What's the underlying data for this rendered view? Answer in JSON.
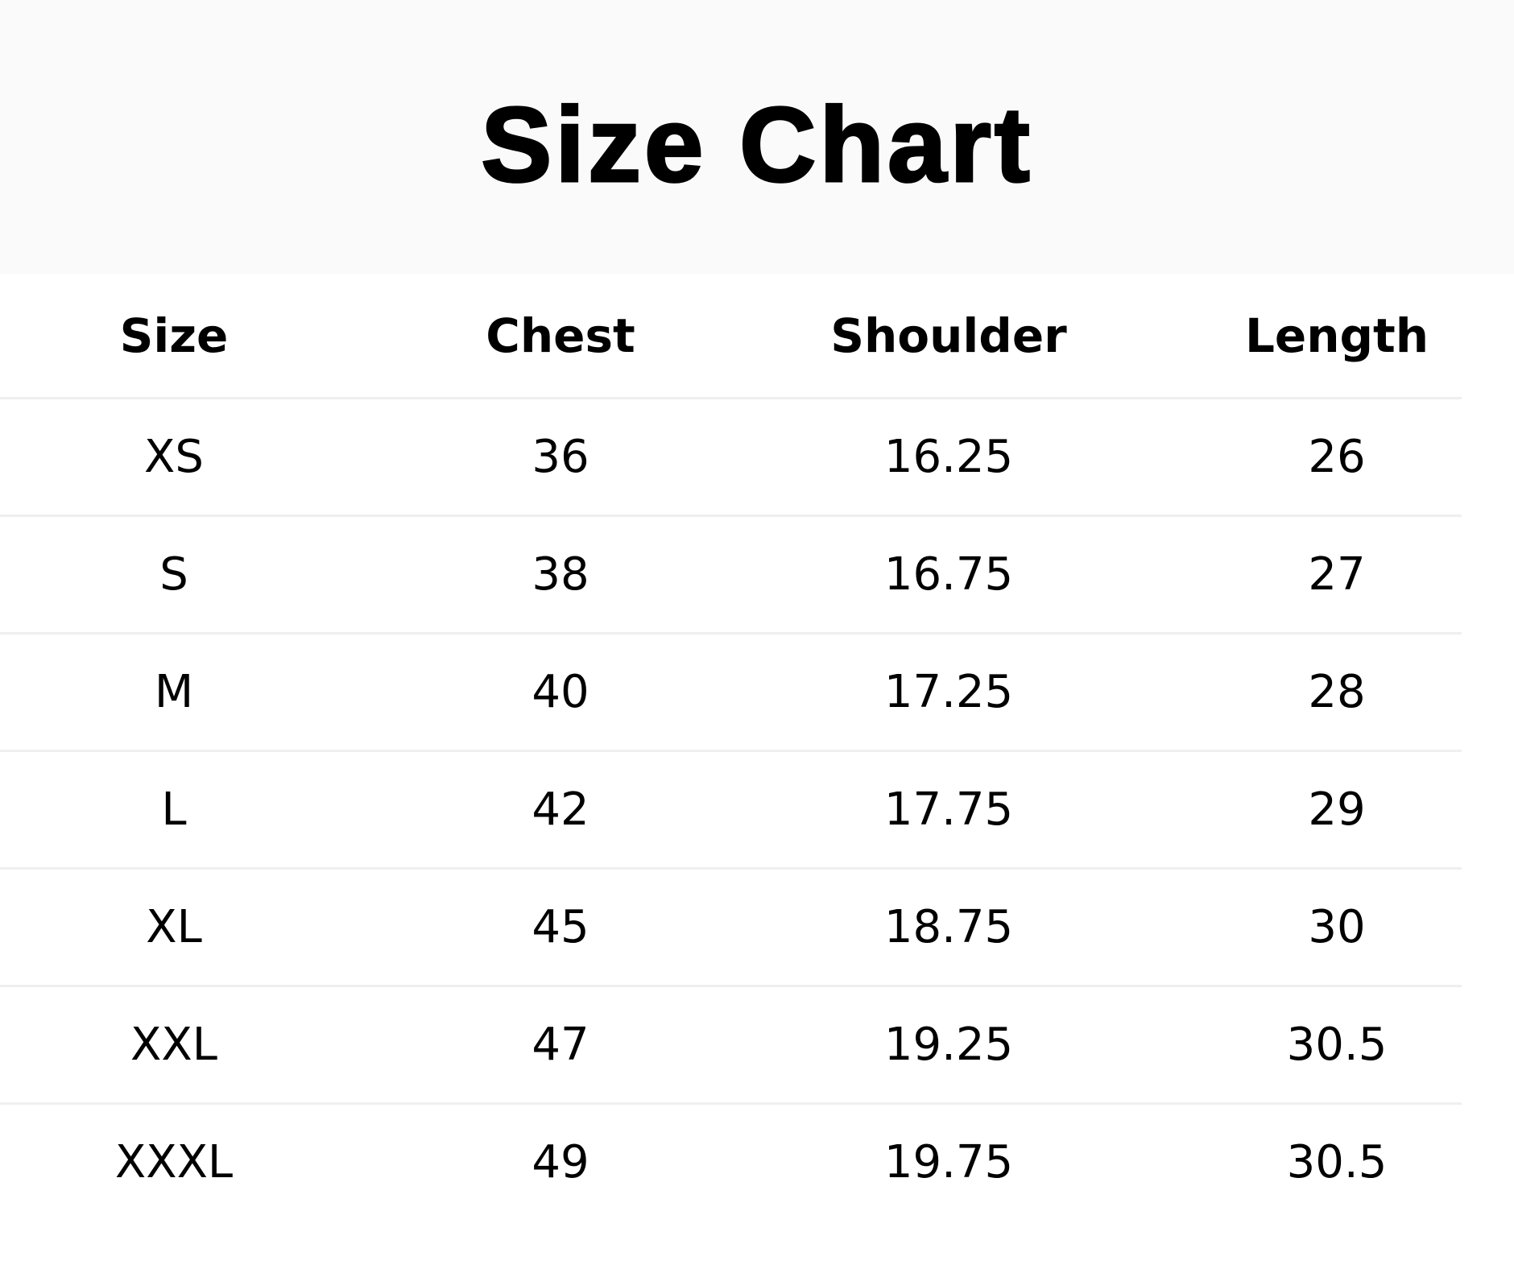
{
  "title": "Size Chart",
  "table": {
    "headers": [
      "Size",
      "Chest",
      "Shoulder",
      "Length"
    ],
    "rows": [
      [
        "XS",
        "36",
        "16.25",
        "26"
      ],
      [
        "S",
        "38",
        "16.75",
        "27"
      ],
      [
        "M",
        "40",
        "17.25",
        "28"
      ],
      [
        "L",
        "42",
        "17.75",
        "29"
      ],
      [
        "XL",
        "45",
        "18.75",
        "30"
      ],
      [
        "XXL",
        "47",
        "19.25",
        "30.5"
      ],
      [
        "XXXL",
        "49",
        "19.75",
        "30.5"
      ]
    ]
  }
}
